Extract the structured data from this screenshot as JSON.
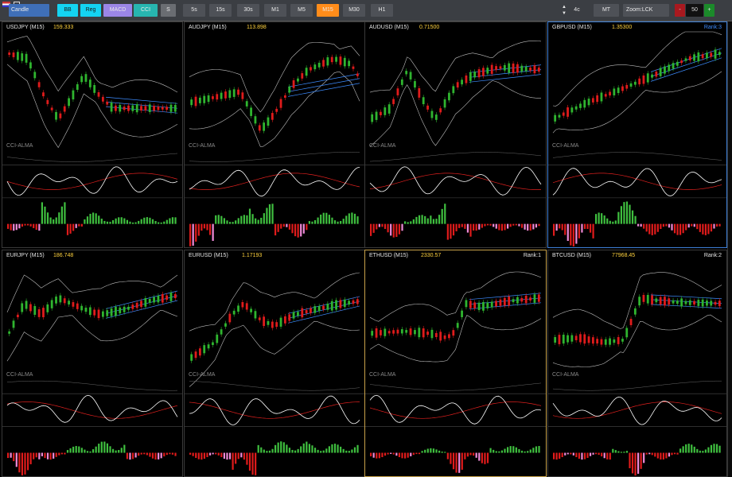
{
  "toolbar": {
    "chart_type": "Candle",
    "indicators": [
      {
        "label": "BB",
        "color": "#14d3f2"
      },
      {
        "label": "Reg",
        "color": "#14d3f2"
      },
      {
        "label": "MACD",
        "color": "#9b86e8"
      },
      {
        "label": "CCI",
        "color": "#27b5b0"
      },
      {
        "label": "S",
        "color": "#6a6d72"
      }
    ],
    "timeframes": [
      "5s",
      "15s",
      "30s",
      "M1",
      "M5",
      "M15",
      "M30",
      "H1"
    ],
    "active_timeframe": "M15",
    "active_color": "#ff8c1a",
    "count": "4c",
    "mt_label": "MT",
    "zoom_label": "Zoom:LCK",
    "minus_label": "-",
    "zoom_value": "50",
    "plus_label": "+"
  },
  "panels": [
    {
      "symbol": "USDJPY (M15)",
      "price": "159.333",
      "rank": ""
    },
    {
      "symbol": "AUDJPY (M15)",
      "price": "113.898",
      "rank": ""
    },
    {
      "symbol": "AUDUSD (M15)",
      "price": "0.71500",
      "rank": ""
    },
    {
      "symbol": "GBPUSD (M15)",
      "price": "1.35300",
      "rank": "Rank:3"
    },
    {
      "symbol": "EURJPY (M15)",
      "price": "186.748",
      "rank": ""
    },
    {
      "symbol": "EURUSD (M15)",
      "price": "1.17193",
      "rank": ""
    },
    {
      "symbol": "ETHUSD (M15)",
      "price": "2330.57",
      "rank": "Rank:1"
    },
    {
      "symbol": "BTCUSD (M15)",
      "price": "77968.45",
      "rank": "Rank:2"
    }
  ],
  "cci_label": "CCI-ALMA",
  "colors": {
    "bull": "#2fb52f",
    "bear": "#e01b1b",
    "hist_pos": "#3fbf3f",
    "hist_neg": "#e01b1b",
    "hist_pink": "#f08ad8",
    "price": "#ffd23d",
    "ma": "#3d8cff"
  },
  "chart_data": [
    {
      "type": "candlestick",
      "symbol": "USDJPY",
      "trend": "down-then-flat"
    },
    {
      "type": "candlestick",
      "symbol": "AUDJPY",
      "trend": "dip-then-up"
    },
    {
      "type": "candlestick",
      "symbol": "AUDUSD",
      "trend": "up"
    },
    {
      "type": "candlestick",
      "symbol": "GBPUSD",
      "trend": "steady-up"
    },
    {
      "type": "candlestick",
      "symbol": "EURJPY",
      "trend": "flat-up"
    },
    {
      "type": "candlestick",
      "symbol": "EURUSD",
      "trend": "up"
    },
    {
      "type": "candlestick",
      "symbol": "ETHUSD",
      "trend": "flat-then-jump"
    },
    {
      "type": "candlestick",
      "symbol": "BTCUSD",
      "trend": "flat-then-jump"
    }
  ]
}
